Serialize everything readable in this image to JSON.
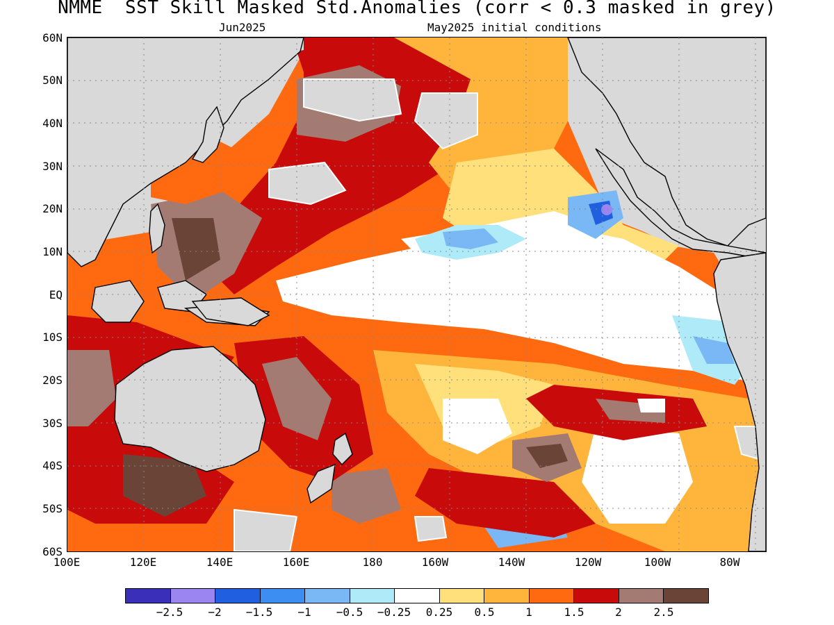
{
  "title": "NMME  SST Skill Masked Std.Anomalies (corr < 0.3 masked in grey)",
  "subtitle_left": "Jun2025",
  "subtitle_right": "May2025 initial conditions",
  "y_ticks": [
    "60N",
    "50N",
    "40N",
    "30N",
    "20N",
    "10N",
    "EQ",
    "10S",
    "20S",
    "30S",
    "40S",
    "50S",
    "60S"
  ],
  "x_ticks": [
    "100E",
    "120E",
    "140E",
    "160E",
    "180",
    "160W",
    "140W",
    "120W",
    "100W",
    "80W"
  ],
  "colorbar": {
    "colors": [
      "#3a2fb8",
      "#9b85f0",
      "#1f5fe0",
      "#3d8ef2",
      "#79b8f5",
      "#aeeaf7",
      "#ffffff",
      "#ffe07a",
      "#ffb43c",
      "#ff6a10",
      "#c80a0a",
      "#a47b72",
      "#6b4438"
    ],
    "labels": [
      "−2.5",
      "−2",
      "−1.5",
      "−1",
      "−0.5",
      "−0.25",
      "0.25",
      "0.5",
      "1",
      "1.5",
      "2",
      "2.5"
    ]
  },
  "colors": {
    "mask_grey": "#d9d9d9",
    "land_grey": "#d9d9d9"
  }
}
